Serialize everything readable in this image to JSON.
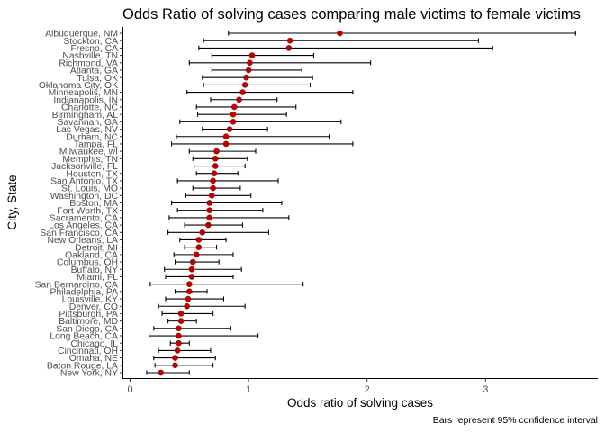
{
  "chart_data": {
    "type": "forest",
    "title": "Odds Ratio of solving cases comparing male victims to female victims",
    "xlabel": "Odds ratio of solving cases",
    "ylabel": "City, State",
    "caption": "Bars represent 95% confidence interval",
    "xlim": [
      0,
      3.95
    ],
    "xticks": [
      0,
      1,
      2,
      3
    ],
    "grid": false,
    "point_color": "#c00000",
    "cities": [
      {
        "name": "Albuquerque, NM",
        "or": 1.77,
        "lo": 0.83,
        "hi": 3.76
      },
      {
        "name": "Stockton, CA",
        "or": 1.35,
        "lo": 0.62,
        "hi": 2.94
      },
      {
        "name": "Fresno, CA",
        "or": 1.34,
        "lo": 0.58,
        "hi": 3.06
      },
      {
        "name": "Nashville, TN",
        "or": 1.03,
        "lo": 0.69,
        "hi": 1.55
      },
      {
        "name": "Richmond, VA",
        "or": 1.01,
        "lo": 0.5,
        "hi": 2.03
      },
      {
        "name": "Atlanta, GA",
        "or": 1.0,
        "lo": 0.69,
        "hi": 1.45
      },
      {
        "name": "Tulsa, OK",
        "or": 0.98,
        "lo": 0.61,
        "hi": 1.54
      },
      {
        "name": "Oklahoma City, OK",
        "or": 0.97,
        "lo": 0.62,
        "hi": 1.52
      },
      {
        "name": "Minneapolis, MN",
        "or": 0.95,
        "lo": 0.48,
        "hi": 1.88
      },
      {
        "name": "Indianapolis, IN",
        "or": 0.92,
        "lo": 0.68,
        "hi": 1.24
      },
      {
        "name": "Charlotte, NC",
        "or": 0.88,
        "lo": 0.56,
        "hi": 1.4
      },
      {
        "name": "Birmingham, AL",
        "or": 0.87,
        "lo": 0.57,
        "hi": 1.32
      },
      {
        "name": "Savannah, GA",
        "or": 0.87,
        "lo": 0.42,
        "hi": 1.78
      },
      {
        "name": "Las Vegas, NV",
        "or": 0.84,
        "lo": 0.61,
        "hi": 1.16
      },
      {
        "name": "Durham, NC",
        "or": 0.81,
        "lo": 0.39,
        "hi": 1.68
      },
      {
        "name": "Tampa, FL",
        "or": 0.81,
        "lo": 0.35,
        "hi": 1.88
      },
      {
        "name": "Milwaukee, wI",
        "or": 0.73,
        "lo": 0.5,
        "hi": 1.06
      },
      {
        "name": "Memphis, TN",
        "or": 0.72,
        "lo": 0.53,
        "hi": 0.99
      },
      {
        "name": "Jacksonville, FL",
        "or": 0.72,
        "lo": 0.54,
        "hi": 0.97
      },
      {
        "name": "Houston, TX",
        "or": 0.71,
        "lo": 0.56,
        "hi": 0.91
      },
      {
        "name": "San Antonio, TX",
        "or": 0.7,
        "lo": 0.4,
        "hi": 1.25
      },
      {
        "name": "St. Louis, MO",
        "or": 0.7,
        "lo": 0.53,
        "hi": 0.93
      },
      {
        "name": "Washington, DC",
        "or": 0.69,
        "lo": 0.47,
        "hi": 1.02
      },
      {
        "name": "Boston, MA",
        "or": 0.67,
        "lo": 0.35,
        "hi": 1.28
      },
      {
        "name": "Fort Worth, TX",
        "or": 0.67,
        "lo": 0.4,
        "hi": 1.12
      },
      {
        "name": "Sacramento, CA",
        "or": 0.67,
        "lo": 0.33,
        "hi": 1.34
      },
      {
        "name": "Los Angeles, CA",
        "or": 0.66,
        "lo": 0.46,
        "hi": 0.95
      },
      {
        "name": "San Francisco, CA",
        "or": 0.61,
        "lo": 0.32,
        "hi": 1.17
      },
      {
        "name": "New Orleans, LA",
        "or": 0.58,
        "lo": 0.42,
        "hi": 0.81
      },
      {
        "name": "Detroit, MI",
        "or": 0.58,
        "lo": 0.46,
        "hi": 0.73
      },
      {
        "name": "Oakland, CA",
        "or": 0.56,
        "lo": 0.37,
        "hi": 0.87
      },
      {
        "name": "Columbus, OH",
        "or": 0.53,
        "lo": 0.38,
        "hi": 0.75
      },
      {
        "name": "Buffalo, NY",
        "or": 0.52,
        "lo": 0.29,
        "hi": 0.94
      },
      {
        "name": "Miami, FL",
        "or": 0.52,
        "lo": 0.3,
        "hi": 0.87
      },
      {
        "name": "San Bernardino, CA",
        "or": 0.5,
        "lo": 0.17,
        "hi": 1.46
      },
      {
        "name": "Philadelphia, PA",
        "or": 0.5,
        "lo": 0.38,
        "hi": 0.65
      },
      {
        "name": "Louisville, KY",
        "or": 0.49,
        "lo": 0.3,
        "hi": 0.79
      },
      {
        "name": "Denver, CO",
        "or": 0.48,
        "lo": 0.24,
        "hi": 0.97
      },
      {
        "name": "Pittsburgh, PA",
        "or": 0.43,
        "lo": 0.27,
        "hi": 0.7
      },
      {
        "name": "Baltimore, MD",
        "or": 0.43,
        "lo": 0.32,
        "hi": 0.56
      },
      {
        "name": "San Diego, CA",
        "or": 0.41,
        "lo": 0.2,
        "hi": 0.85
      },
      {
        "name": "Long Beach, CA",
        "or": 0.41,
        "lo": 0.16,
        "hi": 1.08
      },
      {
        "name": "Chicago, IL",
        "or": 0.41,
        "lo": 0.34,
        "hi": 0.5
      },
      {
        "name": "Cincinnati, OH",
        "or": 0.4,
        "lo": 0.24,
        "hi": 0.68
      },
      {
        "name": "Omaha, NE",
        "or": 0.38,
        "lo": 0.2,
        "hi": 0.72
      },
      {
        "name": "Baton Rouge, LA",
        "or": 0.38,
        "lo": 0.21,
        "hi": 0.7
      },
      {
        "name": "New York, NY",
        "or": 0.26,
        "lo": 0.14,
        "hi": 0.5
      }
    ]
  }
}
